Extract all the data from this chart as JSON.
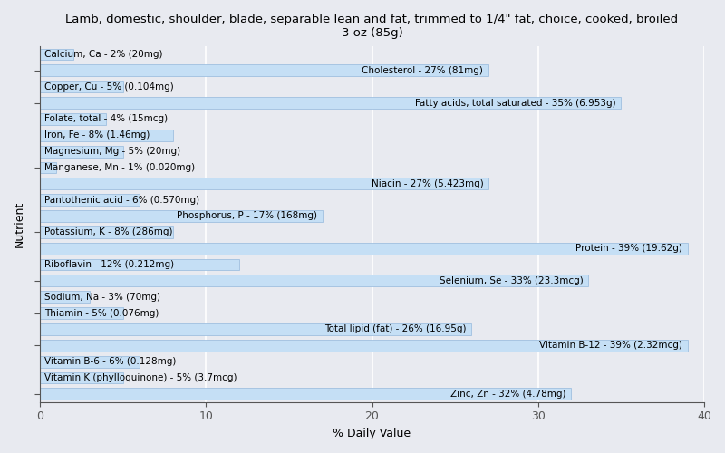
{
  "title": "Lamb, domestic, shoulder, blade, separable lean and fat, trimmed to 1/4\" fat, choice, cooked, broiled\n3 oz (85g)",
  "xlabel": "% Daily Value",
  "ylabel": "Nutrient",
  "xlim": [
    0,
    40
  ],
  "background_color": "#e8eaf0",
  "bar_color": "#c5dff5",
  "bar_edge_color": "#a0c0e0",
  "nutrients_top_to_bottom": [
    {
      "label": "Calcium, Ca - 2% (20mg)",
      "value": 2,
      "label_inside": false
    },
    {
      "label": "Cholesterol - 27% (81mg)",
      "value": 27,
      "label_inside": true
    },
    {
      "label": "Copper, Cu - 5% (0.104mg)",
      "value": 5,
      "label_inside": false
    },
    {
      "label": "Fatty acids, total saturated - 35% (6.953g)",
      "value": 35,
      "label_inside": true
    },
    {
      "label": "Folate, total - 4% (15mcg)",
      "value": 4,
      "label_inside": false
    },
    {
      "label": "Iron, Fe - 8% (1.46mg)",
      "value": 8,
      "label_inside": false
    },
    {
      "label": "Magnesium, Mg - 5% (20mg)",
      "value": 5,
      "label_inside": false
    },
    {
      "label": "Manganese, Mn - 1% (0.020mg)",
      "value": 1,
      "label_inside": false
    },
    {
      "label": "Niacin - 27% (5.423mg)",
      "value": 27,
      "label_inside": true
    },
    {
      "label": "Pantothenic acid - 6% (0.570mg)",
      "value": 6,
      "label_inside": false
    },
    {
      "label": "Phosphorus, P - 17% (168mg)",
      "value": 17,
      "label_inside": true
    },
    {
      "label": "Potassium, K - 8% (286mg)",
      "value": 8,
      "label_inside": false
    },
    {
      "label": "Protein - 39% (19.62g)",
      "value": 39,
      "label_inside": true
    },
    {
      "label": "Riboflavin - 12% (0.212mg)",
      "value": 12,
      "label_inside": false
    },
    {
      "label": "Selenium, Se - 33% (23.3mcg)",
      "value": 33,
      "label_inside": true
    },
    {
      "label": "Sodium, Na - 3% (70mg)",
      "value": 3,
      "label_inside": false
    },
    {
      "label": "Thiamin - 5% (0.076mg)",
      "value": 5,
      "label_inside": false
    },
    {
      "label": "Total lipid (fat) - 26% (16.95g)",
      "value": 26,
      "label_inside": true
    },
    {
      "label": "Vitamin B-12 - 39% (2.32mcg)",
      "value": 39,
      "label_inside": true
    },
    {
      "label": "Vitamin B-6 - 6% (0.128mg)",
      "value": 6,
      "label_inside": false
    },
    {
      "label": "Vitamin K (phylloquinone) - 5% (3.7mcg)",
      "value": 5,
      "label_inside": false
    },
    {
      "label": "Zinc, Zn - 32% (4.78mg)",
      "value": 32,
      "label_inside": true
    }
  ],
  "grid_color": "#ffffff",
  "tick_color": "#555555",
  "label_fontsize": 7.5,
  "title_fontsize": 9.5,
  "axis_label_fontsize": 9,
  "xticks": [
    0,
    10,
    20,
    30,
    40
  ],
  "ytick_groups": [
    1.5,
    3.5,
    7.5,
    11.5,
    14.5,
    16.5,
    18.5,
    21.5
  ]
}
